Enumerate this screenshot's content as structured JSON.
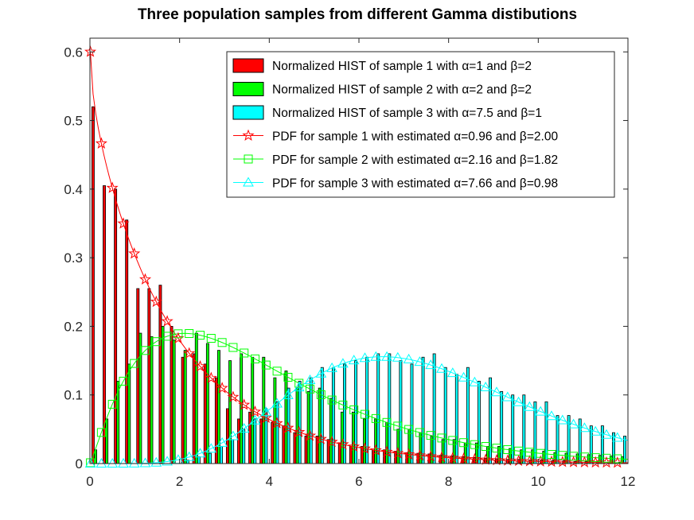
{
  "chart_data": {
    "type": "bar",
    "title": "Three population samples from different Gamma distibutions",
    "xlabel": "",
    "ylabel": "",
    "xlim": [
      0,
      12
    ],
    "ylim": [
      0,
      0.62
    ],
    "xticks": [
      0,
      2,
      4,
      6,
      8,
      10,
      12
    ],
    "yticks": [
      0,
      0.1,
      0.2,
      0.3,
      0.4,
      0.5,
      0.6
    ],
    "grid": false,
    "legend_position": "top-right",
    "bin_centers": [
      0.125,
      0.375,
      0.625,
      0.875,
      1.125,
      1.375,
      1.625,
      1.875,
      2.125,
      2.375,
      2.625,
      2.875,
      3.125,
      3.375,
      3.625,
      3.875,
      4.125,
      4.375,
      4.625,
      4.875,
      5.125,
      5.375,
      5.625,
      5.875,
      6.125,
      6.375,
      6.625,
      6.875,
      7.125,
      7.375,
      7.625,
      7.875,
      8.125,
      8.375,
      8.625,
      8.875,
      9.125,
      9.375,
      9.625,
      9.875,
      10.125,
      10.375,
      10.625,
      10.875,
      11.125,
      11.375,
      11.625,
      11.875
    ],
    "bar_series": [
      {
        "name": "Normalized HIST of sample 1 with α=1 and β=2",
        "color": "#ff0000",
        "values": [
          0.52,
          0.405,
          0.4,
          0.355,
          0.255,
          0.255,
          0.26,
          0.2,
          0.155,
          0.16,
          0.145,
          0.125,
          0.08,
          0.065,
          0.075,
          0.065,
          0.06,
          0.055,
          0.045,
          0.04,
          0.04,
          0.035,
          0.03,
          0.025,
          0.025,
          0.02,
          0.02,
          0.018,
          0.016,
          0.015,
          0.014,
          0.012,
          0.011,
          0.01,
          0.009,
          0.008,
          0.007,
          0.006,
          0.006,
          0.005,
          0.005,
          0.004,
          0.004,
          0.003,
          0.003,
          0.003,
          0.002,
          0.002
        ]
      },
      {
        "name": "Normalized HIST of sample 2 with α=2 and β=2",
        "color": "#00ff00",
        "values": [
          0.02,
          0.065,
          0.12,
          0.145,
          0.19,
          0.185,
          0.2,
          0.18,
          0.165,
          0.19,
          0.175,
          0.165,
          0.15,
          0.16,
          0.155,
          0.155,
          0.125,
          0.135,
          0.11,
          0.105,
          0.11,
          0.095,
          0.075,
          0.075,
          0.065,
          0.065,
          0.06,
          0.05,
          0.05,
          0.045,
          0.04,
          0.035,
          0.035,
          0.03,
          0.03,
          0.025,
          0.025,
          0.022,
          0.02,
          0.02,
          0.018,
          0.016,
          0.015,
          0.014,
          0.013,
          0.012,
          0.011,
          0.01
        ]
      },
      {
        "name": "Normalized HIST of sample 3 with α=7.5 and β=1",
        "color": "#00ffff",
        "values": [
          0.0,
          0.0,
          0.0,
          0.0,
          0.0,
          0.0,
          0.0,
          0.0,
          0.005,
          0.01,
          0.015,
          0.025,
          0.035,
          0.05,
          0.065,
          0.08,
          0.09,
          0.11,
          0.12,
          0.125,
          0.14,
          0.14,
          0.145,
          0.15,
          0.155,
          0.16,
          0.16,
          0.15,
          0.145,
          0.155,
          0.16,
          0.14,
          0.13,
          0.14,
          0.12,
          0.125,
          0.105,
          0.1,
          0.1,
          0.09,
          0.09,
          0.07,
          0.07,
          0.065,
          0.055,
          0.055,
          0.045,
          0.04
        ]
      }
    ],
    "pdf_series": [
      {
        "name": "PDF for sample 1 with estimated α=0.96 and β=2.00",
        "color": "#ff0000",
        "marker": "star",
        "alpha": 0.96,
        "beta": 2.0
      },
      {
        "name": "PDF for sample 2 with estimated α=2.16 and β=1.82",
        "color": "#00ff00",
        "marker": "square",
        "alpha": 2.16,
        "beta": 1.82
      },
      {
        "name": "PDF for sample 3 with estimated α=7.66 and β=0.98",
        "color": "#00ffff",
        "marker": "triangle",
        "alpha": 7.66,
        "beta": 0.98
      }
    ]
  }
}
